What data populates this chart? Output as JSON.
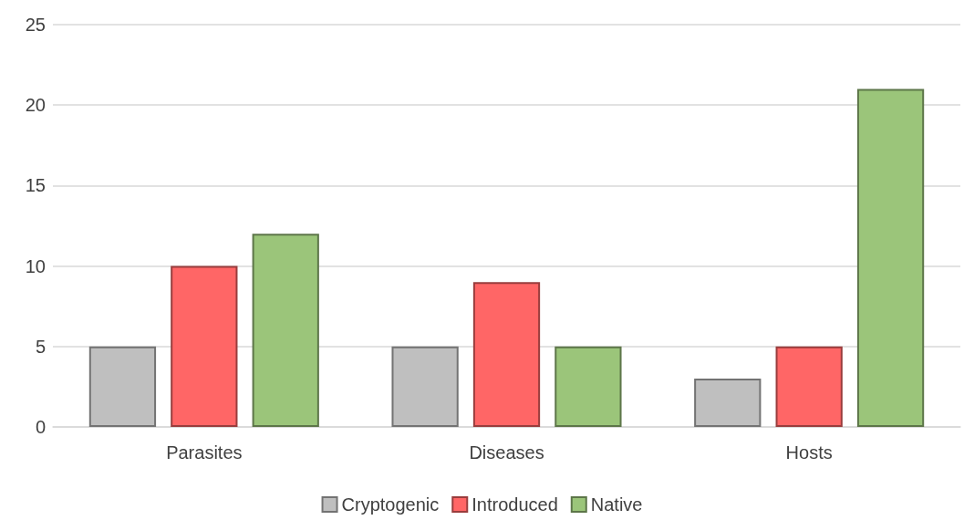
{
  "chart_data": {
    "type": "bar",
    "categories": [
      "Parasites",
      "Diseases",
      "Hosts"
    ],
    "series": [
      {
        "name": "Cryptogenic",
        "color": "#bfbfbf",
        "values": [
          5,
          5,
          3
        ]
      },
      {
        "name": "Introduced",
        "color": "#ff6666",
        "values": [
          10,
          9,
          5
        ]
      },
      {
        "name": "Native",
        "color": "#9bc57a",
        "values": [
          12,
          5,
          21
        ]
      }
    ],
    "ylim": [
      0,
      25
    ],
    "yticks": [
      0,
      5,
      10,
      15,
      20,
      25
    ],
    "grid": "y",
    "legend": "bottom"
  }
}
